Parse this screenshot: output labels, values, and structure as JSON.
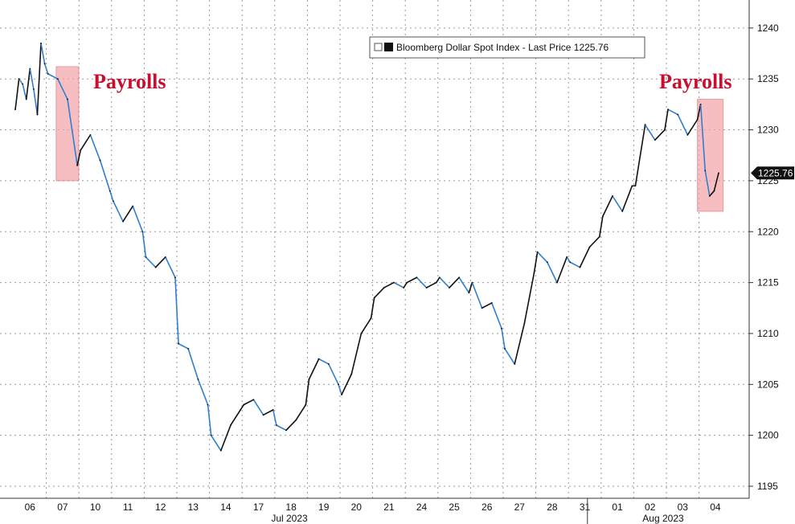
{
  "chart_data": {
    "type": "line",
    "title": "",
    "xlabel": "",
    "ylabel": "",
    "ylim": [
      1194,
      1243
    ],
    "y_ticks": [
      1195,
      1200,
      1205,
      1210,
      1215,
      1220,
      1225,
      1230,
      1235,
      1240
    ],
    "grid": true,
    "legend": {
      "position": "top-right",
      "label": "Bloomberg Dollar Spot Index - Last Price 1225.76"
    },
    "last_price_label": "1225.76",
    "last_price": 1225.76,
    "x_tick_labels": [
      "06",
      "07",
      "10",
      "11",
      "12",
      "13",
      "14",
      "17",
      "18",
      "19",
      "20",
      "21",
      "24",
      "25",
      "26",
      "27",
      "28",
      "31",
      "01",
      "02",
      "03",
      "04"
    ],
    "month_labels": [
      "Jul 2023",
      "Aug 2023"
    ],
    "annotations": [
      {
        "text": "Payrolls",
        "day": "07"
      },
      {
        "text": "Payrolls",
        "day": "04"
      }
    ],
    "series": [
      {
        "points": [
          [
            "06",
            1232.0
          ],
          [
            "06",
            1235.0
          ],
          [
            "06",
            1234.5
          ],
          [
            "06",
            1233.0
          ],
          [
            "06",
            1236.0
          ],
          [
            "06",
            1234.0
          ],
          [
            "06",
            1231.5
          ],
          [
            "06",
            1238.5
          ],
          [
            "06",
            1236.5
          ],
          [
            "07",
            1235.5
          ],
          [
            "07",
            1235.0
          ],
          [
            "07",
            1233.0
          ],
          [
            "07",
            1226.5
          ],
          [
            "10",
            1228.0
          ],
          [
            "10",
            1229.5
          ],
          [
            "10",
            1227.0
          ],
          [
            "10",
            1224.0
          ],
          [
            "11",
            1223.0
          ],
          [
            "11",
            1221.0
          ],
          [
            "11",
            1222.5
          ],
          [
            "11",
            1220.0
          ],
          [
            "12",
            1217.5
          ],
          [
            "12",
            1216.5
          ],
          [
            "12",
            1217.5
          ],
          [
            "12",
            1215.5
          ],
          [
            "13",
            1209.0
          ],
          [
            "13",
            1208.5
          ],
          [
            "13",
            1205.5
          ],
          [
            "13",
            1203.0
          ],
          [
            "14",
            1200.0
          ],
          [
            "14",
            1198.5
          ],
          [
            "14",
            1201.0
          ],
          [
            "14",
            1202.5
          ],
          [
            "17",
            1203.0
          ],
          [
            "17",
            1203.5
          ],
          [
            "17",
            1202.0
          ],
          [
            "17",
            1202.5
          ],
          [
            "18",
            1201.0
          ],
          [
            "18",
            1200.5
          ],
          [
            "18",
            1201.5
          ],
          [
            "18",
            1203.0
          ],
          [
            "19",
            1205.5
          ],
          [
            "19",
            1207.5
          ],
          [
            "19",
            1207.0
          ],
          [
            "19",
            1205.0
          ],
          [
            "20",
            1204.0
          ],
          [
            "20",
            1206.0
          ],
          [
            "20",
            1210.0
          ],
          [
            "20",
            1211.5
          ],
          [
            "21",
            1213.5
          ],
          [
            "21",
            1214.5
          ],
          [
            "21",
            1215.0
          ],
          [
            "21",
            1214.5
          ],
          [
            "24",
            1215.0
          ],
          [
            "24",
            1215.5
          ],
          [
            "24",
            1214.5
          ],
          [
            "24",
            1215.0
          ],
          [
            "25",
            1215.5
          ],
          [
            "25",
            1214.5
          ],
          [
            "25",
            1215.5
          ],
          [
            "25",
            1214.0
          ],
          [
            "26",
            1215.0
          ],
          [
            "26",
            1212.5
          ],
          [
            "26",
            1213.0
          ],
          [
            "26",
            1210.5
          ],
          [
            "27",
            1208.5
          ],
          [
            "27",
            1207.0
          ],
          [
            "27",
            1211.0
          ],
          [
            "27",
            1216.0
          ],
          [
            "28",
            1218.0
          ],
          [
            "28",
            1217.0
          ],
          [
            "28",
            1215.0
          ],
          [
            "28",
            1217.5
          ],
          [
            "31",
            1217.0
          ],
          [
            "31",
            1216.5
          ],
          [
            "31",
            1218.5
          ],
          [
            "31",
            1219.5
          ],
          [
            "01",
            1221.5
          ],
          [
            "01",
            1223.5
          ],
          [
            "01",
            1222.0
          ],
          [
            "01",
            1224.5
          ],
          [
            "02",
            1224.5
          ],
          [
            "02",
            1230.5
          ],
          [
            "02",
            1229.0
          ],
          [
            "02",
            1230.0
          ],
          [
            "03",
            1232.0
          ],
          [
            "03",
            1231.5
          ],
          [
            "03",
            1229.5
          ],
          [
            "03",
            1231.0
          ],
          [
            "04",
            1232.5
          ],
          [
            "04",
            1226.0
          ],
          [
            "04",
            1223.5
          ],
          [
            "04",
            1224.0
          ],
          [
            "04",
            1225.76
          ]
        ]
      }
    ]
  }
}
